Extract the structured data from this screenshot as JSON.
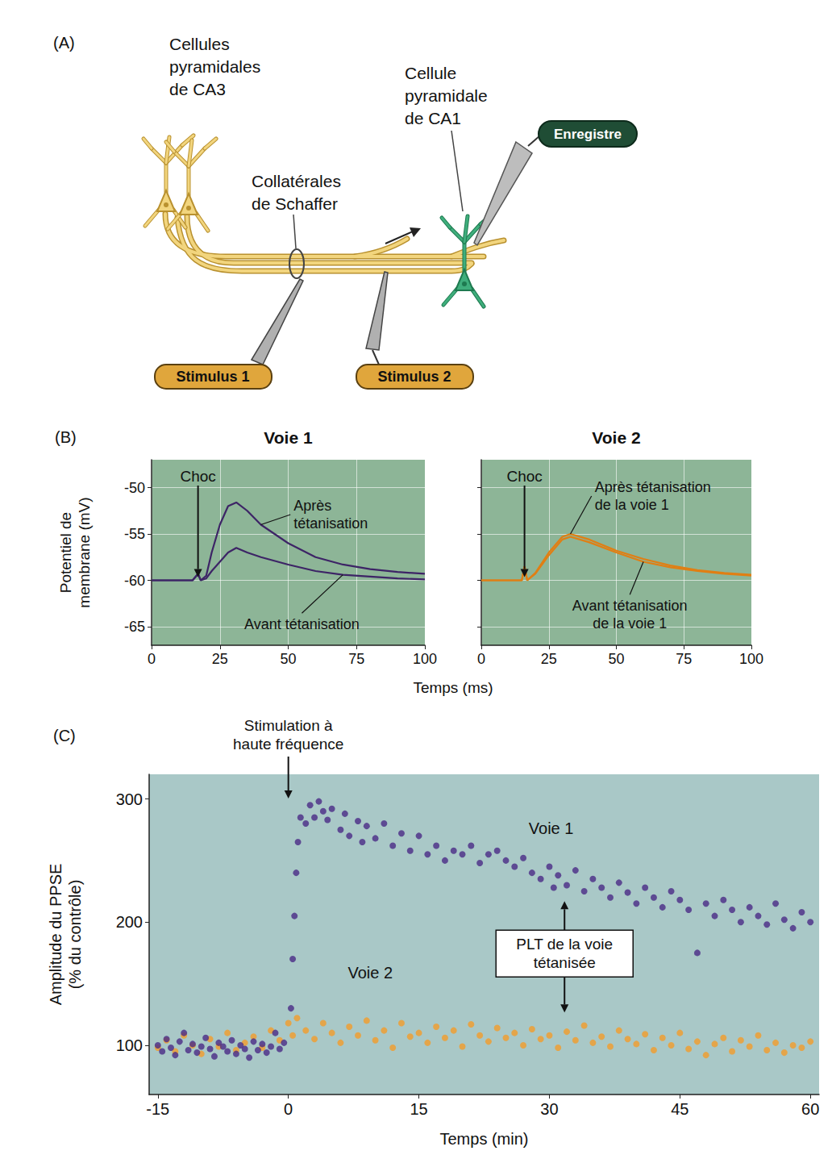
{
  "diagram": {
    "letter": "(A)",
    "ca3": "Cellules pyramidales de CA3",
    "ca1": "Cellule pyramidale de CA1",
    "record": "Enregistre",
    "schaffer": "Collatérales de Schaffer",
    "stimulus1": "Stimulus 1",
    "stimulus2": "Stimulus 2"
  },
  "chart_data": [
    {
      "letter": "(B)",
      "type": "line",
      "title": "Voie 1",
      "xlabel": "Temps (ms)",
      "ylabel": "Potentiel de membrane (mV)",
      "xlim": [
        0,
        100
      ],
      "xticks": [
        0,
        25,
        50,
        75,
        100
      ],
      "ylim": [
        -67,
        -47
      ],
      "yticks": [
        -65,
        -60,
        -55,
        -50
      ],
      "grid": true,
      "x": [
        0,
        10,
        15,
        17,
        18,
        20,
        22,
        25,
        28,
        31,
        35,
        40,
        50,
        60,
        70,
        80,
        90,
        100
      ],
      "series": [
        {
          "name": "Avant tétanisation",
          "color": "#3d2466",
          "values": [
            -60,
            -60,
            -60,
            -59.3,
            -60,
            -59.8,
            -59,
            -58,
            -57,
            -56.5,
            -57,
            -57.5,
            -58.3,
            -59,
            -59.4,
            -59.6,
            -59.8,
            -59.9
          ]
        },
        {
          "name": "Après tétanisation",
          "color": "#3d2466",
          "values": [
            -60,
            -60,
            -60,
            -59.3,
            -60,
            -59.5,
            -57,
            -54,
            -52,
            -51.6,
            -52.5,
            -54,
            -56,
            -57.5,
            -58.3,
            -58.8,
            -59.1,
            -59.3
          ]
        }
      ],
      "annotations": [
        {
          "text": "Choc",
          "x": 17
        }
      ]
    },
    {
      "type": "line",
      "title": "Voie 2",
      "xlim": [
        0,
        100
      ],
      "xticks": [
        0,
        25,
        50,
        75,
        100
      ],
      "ylim": [
        -67,
        -47
      ],
      "yticks": [
        -65,
        -60,
        -55,
        -50
      ],
      "grid": true,
      "tick_labels": "x",
      "x": [
        0,
        15,
        16,
        17,
        20,
        25,
        30,
        33,
        40,
        50,
        60,
        70,
        80,
        90,
        100
      ],
      "series": [
        {
          "name": "Avant tétanisation de la voie 1",
          "color": "#e07f14",
          "values": [
            -60,
            -60,
            -58.5,
            -60,
            -59.3,
            -57.3,
            -55.6,
            -55.3,
            -55.9,
            -57,
            -58,
            -58.6,
            -59,
            -59.3,
            -59.5
          ]
        },
        {
          "name": "Après tétanisation de la voie 1",
          "color": "#e07f14",
          "values": [
            -60,
            -60,
            -58.5,
            -60,
            -59.2,
            -57,
            -55.3,
            -55,
            -55.6,
            -56.8,
            -57.7,
            -58.4,
            -58.9,
            -59.2,
            -59.4
          ]
        }
      ],
      "annotations": [
        {
          "text": "Choc",
          "x": 16
        }
      ]
    },
    {
      "letter": "(C)",
      "type": "scatter",
      "xlabel": "Temps (min)",
      "ylabel": "Amplitude du PPSE (% du contrôle)",
      "xlim": [
        -16,
        61
      ],
      "xticks": [
        -15,
        0,
        15,
        30,
        45,
        60
      ],
      "ylim": [
        60,
        320
      ],
      "yticks": [
        100,
        200,
        300
      ],
      "grid": false,
      "series": [
        {
          "name": "Voie 1",
          "color": "#4a2a86",
          "marker": "circle",
          "x": [
            -15,
            -14.5,
            -14,
            -13.5,
            -13,
            -12.5,
            -12,
            -11.5,
            -11,
            -10.5,
            -10,
            -9.5,
            -9,
            -8.5,
            -8,
            -7.5,
            -7,
            -6.5,
            -6,
            -5.5,
            -5,
            -4.5,
            -4,
            -3.5,
            -3,
            -2.5,
            -2,
            -1.5,
            -1,
            -0.5,
            0.3,
            0.5,
            0.7,
            0.9,
            1.1,
            1.4,
            2,
            2.5,
            3,
            3.5,
            4,
            4.5,
            5,
            6,
            6.5,
            7,
            8,
            8.5,
            9,
            10,
            11,
            12,
            13,
            14,
            15,
            16,
            17,
            18,
            19,
            20,
            21,
            22,
            23,
            24,
            25,
            26,
            27,
            28,
            29,
            30,
            30.5,
            31,
            32,
            33,
            34,
            35,
            36,
            37,
            38,
            39,
            40,
            41,
            42,
            43,
            44,
            45,
            46,
            47,
            48,
            49,
            50,
            51,
            52,
            53,
            54,
            55,
            56,
            57,
            58,
            59,
            60
          ],
          "values": [
            100,
            95,
            105,
            98,
            92,
            103,
            110,
            96,
            101,
            94,
            99,
            106,
            97,
            91,
            102,
            99,
            95,
            104,
            93,
            100,
            97,
            90,
            103,
            96,
            101,
            94,
            99,
            110,
            97,
            102,
            130,
            170,
            205,
            240,
            265,
            285,
            280,
            295,
            285,
            298,
            290,
            283,
            292,
            275,
            288,
            270,
            282,
            265,
            278,
            268,
            280,
            262,
            272,
            258,
            270,
            255,
            262,
            250,
            258,
            255,
            262,
            248,
            255,
            258,
            250,
            245,
            252,
            240,
            235,
            245,
            228,
            238,
            230,
            242,
            225,
            235,
            228,
            220,
            232,
            224,
            215,
            228,
            220,
            212,
            225,
            218,
            210,
            175,
            215,
            205,
            218,
            210,
            200,
            212,
            205,
            198,
            215,
            202,
            195,
            208,
            200
          ]
        },
        {
          "name": "Voie 2",
          "color": "#f39c2b",
          "marker": "circle",
          "x": [
            -15,
            -14,
            -13,
            -12,
            -11,
            -10,
            -9,
            -8,
            -7,
            -6,
            -5,
            -4,
            -3,
            -2,
            -1,
            0,
            0.5,
            1,
            2,
            3,
            4,
            5,
            6,
            7,
            8,
            9,
            10,
            11,
            12,
            13,
            14,
            15,
            16,
            17,
            18,
            19,
            20,
            21,
            22,
            23,
            24,
            25,
            26,
            27,
            28,
            29,
            30,
            31,
            32,
            33,
            34,
            35,
            36,
            37,
            38,
            39,
            40,
            41,
            42,
            43,
            44,
            45,
            46,
            47,
            48,
            49,
            50,
            51,
            52,
            53,
            54,
            55,
            56,
            57,
            58,
            59,
            60
          ],
          "values": [
            98,
            104,
            95,
            108,
            100,
            93,
            105,
            99,
            110,
            96,
            102,
            107,
            98,
            112,
            104,
            118,
            108,
            122,
            112,
            105,
            118,
            110,
            102,
            115,
            108,
            120,
            104,
            112,
            98,
            118,
            107,
            110,
            102,
            115,
            106,
            112,
            99,
            117,
            108,
            103,
            114,
            106,
            110,
            100,
            113,
            105,
            108,
            98,
            111,
            104,
            116,
            102,
            107,
            99,
            112,
            105,
            101,
            109,
            96,
            106,
            100,
            110,
            97,
            103,
            92,
            101,
            106,
            95,
            104,
            99,
            108,
            96,
            102,
            94,
            100,
            98,
            103
          ]
        }
      ],
      "annotations": [
        {
          "text": "Stimulation à haute fréquence",
          "x": 0
        },
        {
          "text": "PLT de la voie tétanisée"
        }
      ]
    }
  ]
}
